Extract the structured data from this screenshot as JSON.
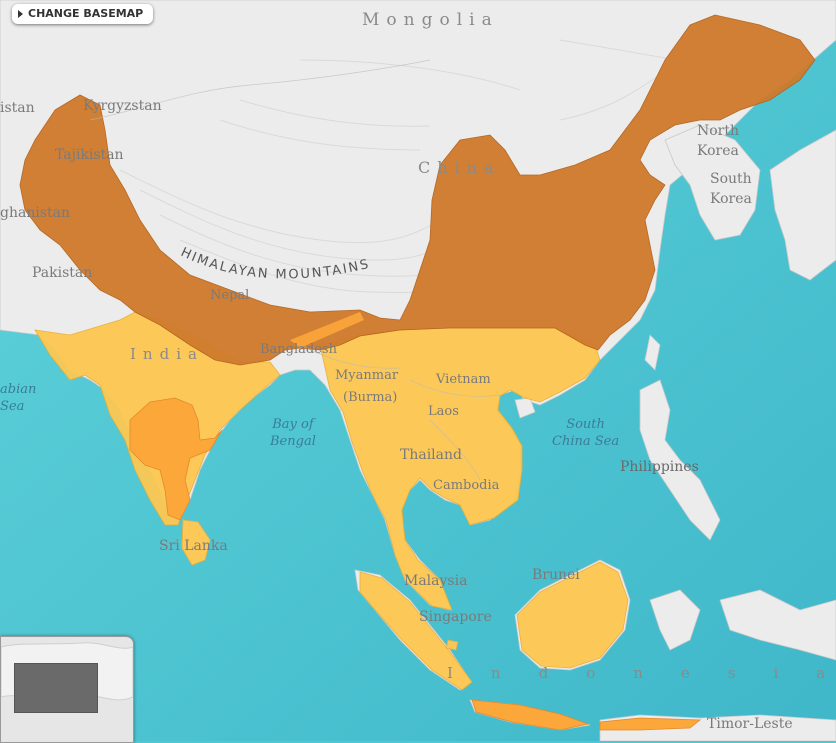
{
  "controls": {
    "change_basemap": "CHANGE BASEMAP"
  },
  "labels": {
    "mongolia": "Mongolia",
    "kyrgyzstan": "Kyrgyzstan",
    "tajikistan": "Tajikistan",
    "afghanistan": "ghanistan",
    "pakistan": "Pakistan",
    "kazakhstan": "istan",
    "nepal": "Nepal",
    "india": "India",
    "bangladesh": "Bangladesh",
    "china": "China",
    "north_korea_1": "North",
    "north_korea_2": "Korea",
    "south_korea_1": "South",
    "south_korea_2": "Korea",
    "myanmar_1": "Myanmar",
    "myanmar_2": "(Burma)",
    "vietnam": "Vietnam",
    "laos": "Laos",
    "thailand": "Thailand",
    "cambodia": "Cambodia",
    "philippines": "Philippines",
    "sri_lanka": "Sri Lanka",
    "malaysia": "Malaysia",
    "singapore": "Singapore",
    "brunei": "Brunei",
    "indonesia": "Indonesia",
    "timor_leste": "Timor-Leste",
    "himalayan_mountains": "HIMALAYAN MOUNTAINS"
  },
  "water_labels": {
    "arabian_sea_1": "abian",
    "arabian_sea_2": "Sea",
    "bay_of_bengal_1": "Bay of",
    "bay_of_bengal_2": "Bengal",
    "south_china_sea_1": "South",
    "south_china_sea_2": "China Sea"
  },
  "legend_colors": {
    "dark_range": "#cf7a2c",
    "light_range": "#fdc852",
    "medium_range": "#fba73a",
    "land": "#ededed",
    "sea": "#4fc8d3"
  }
}
